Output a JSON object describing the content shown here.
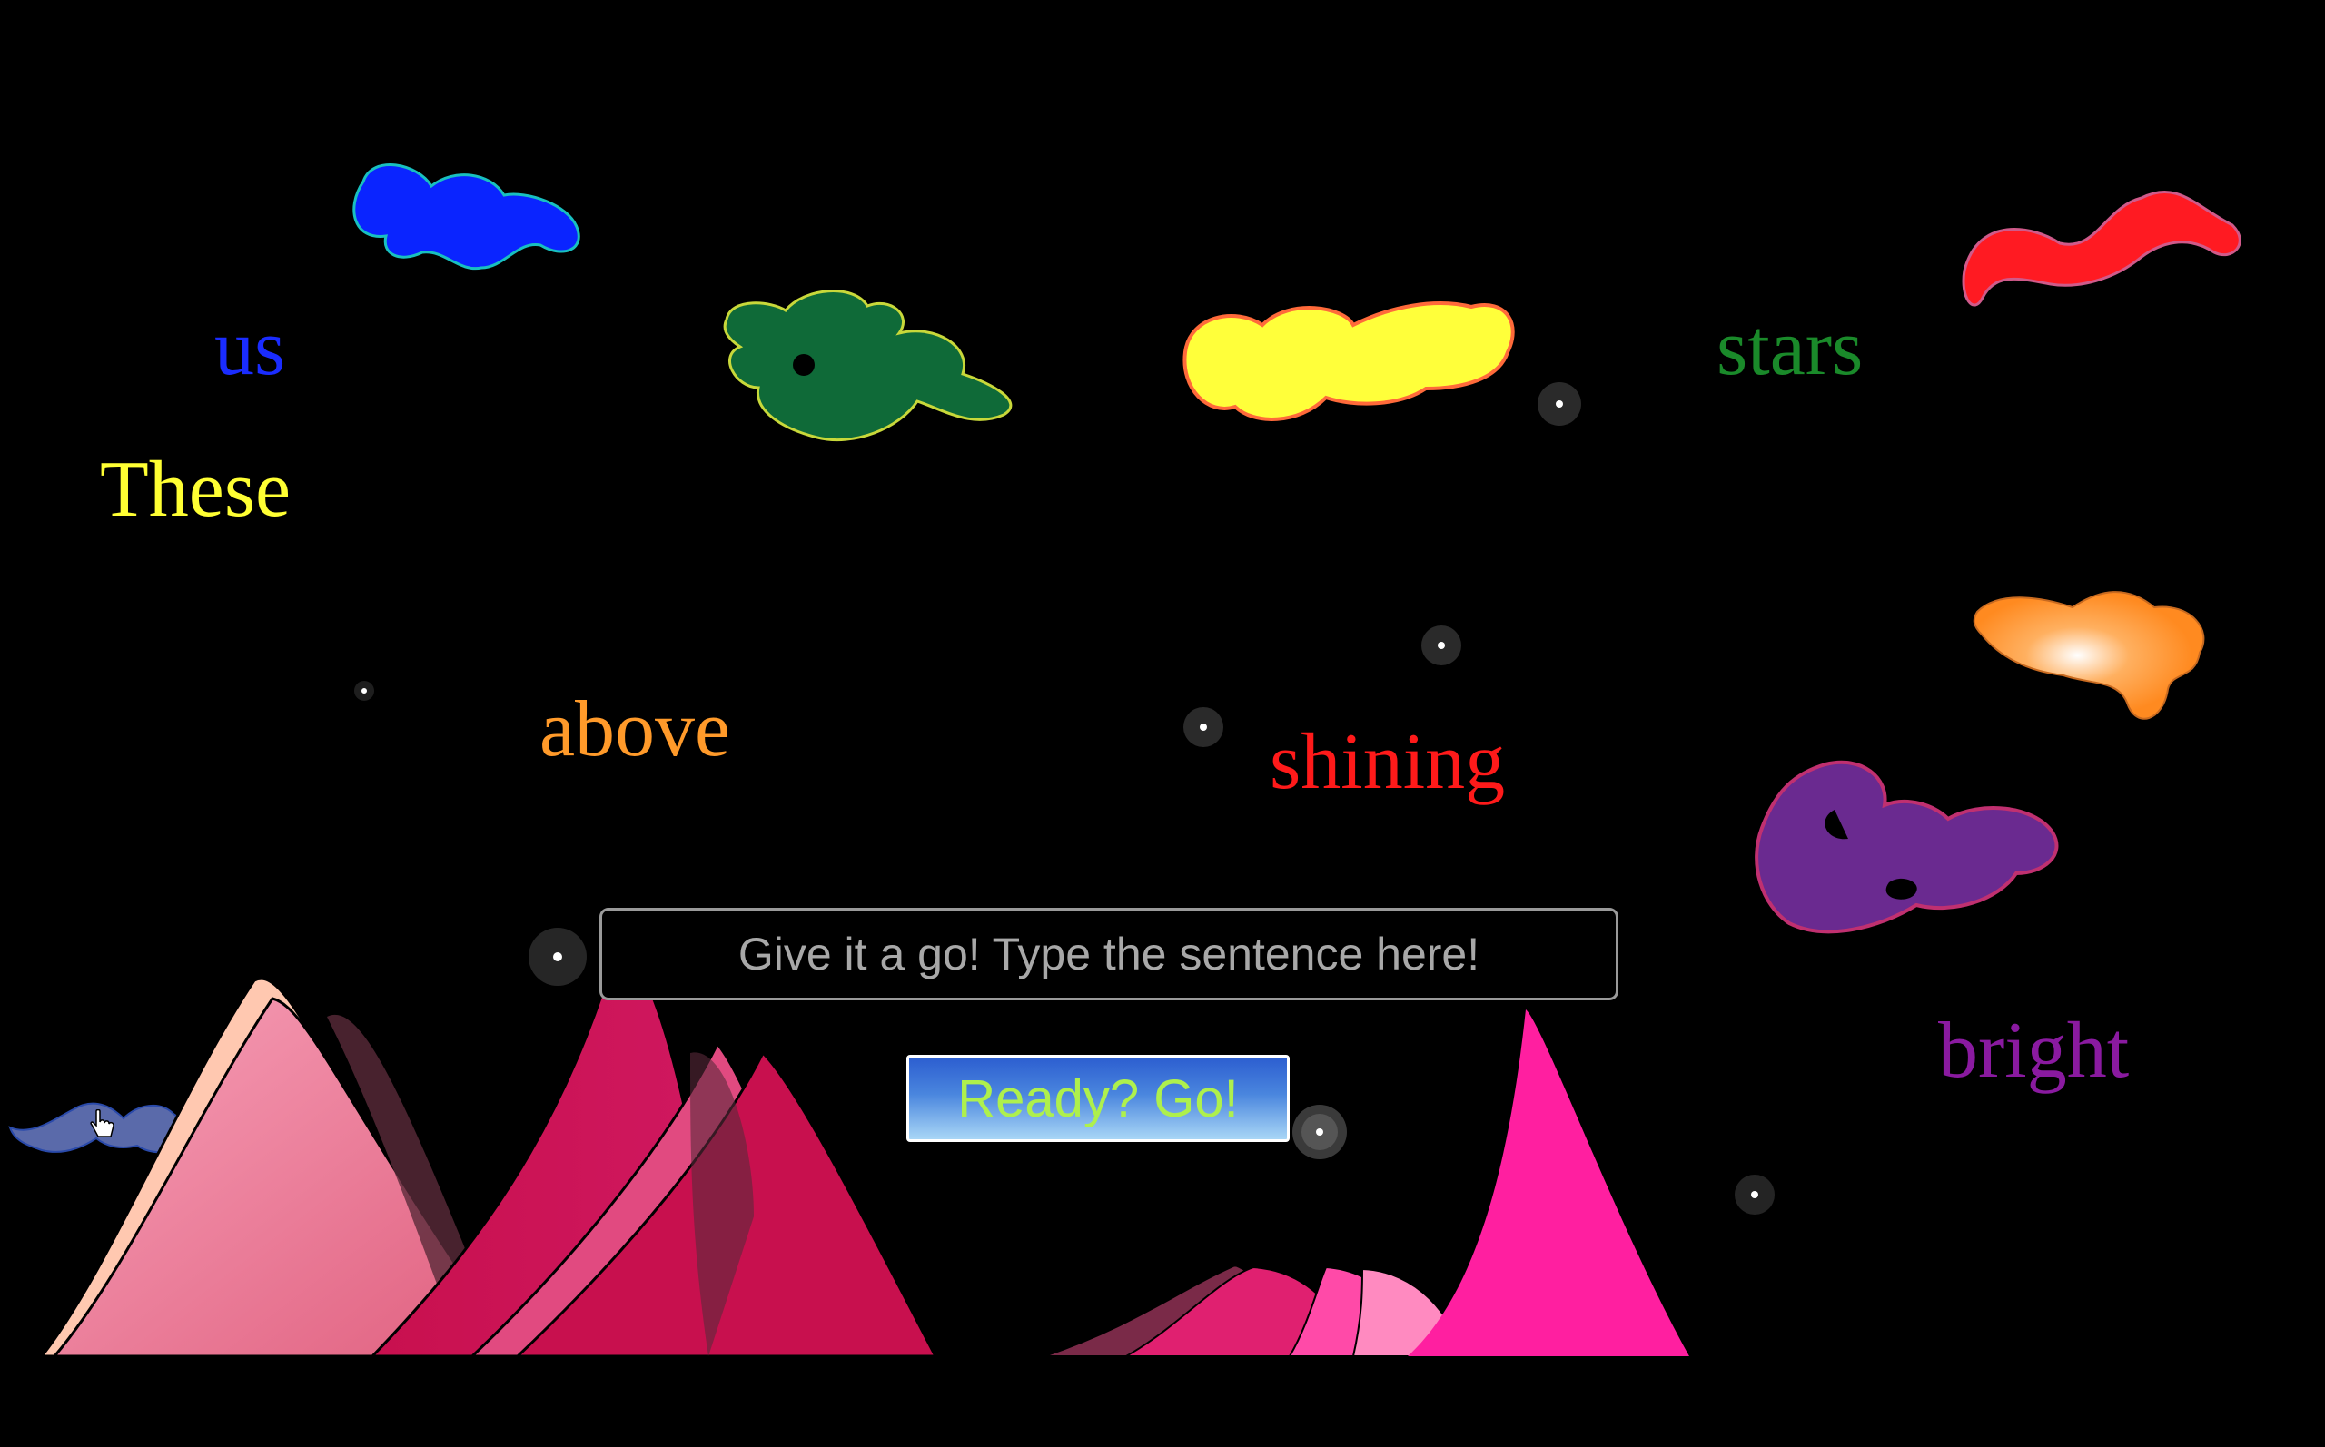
{
  "words": [
    {
      "id": "word-us",
      "text": "us",
      "color": "#1a2cff"
    },
    {
      "id": "word-these",
      "text": "These",
      "color": "#ffff33"
    },
    {
      "id": "word-above",
      "text": "above",
      "color": "#ff9a2a"
    },
    {
      "id": "word-shining",
      "text": "shining",
      "color": "#ff1a1a"
    },
    {
      "id": "word-stars",
      "text": "stars",
      "color": "#1a8a2a"
    },
    {
      "id": "word-bright",
      "text": "bright",
      "color": "#8a1aa0"
    }
  ],
  "input": {
    "placeholder": "Give it a go! Type the sentence here!",
    "value": ""
  },
  "go_button": {
    "label": "Ready? Go!"
  },
  "colors": {
    "background": "#000000",
    "blue_blob": "#0a24ff",
    "green_blob": "#0f6a38",
    "yellow_blob": "#ffff3a",
    "red_blob": "#ff1a22",
    "orange_blob": "#ff9a30",
    "purple_blob": "#6a2a90",
    "slate_blob": "#5a6aaa",
    "mountain_pink": "#f07aa0",
    "mountain_crimson": "#c8104e",
    "mountain_magenta": "#ff1fa0"
  }
}
